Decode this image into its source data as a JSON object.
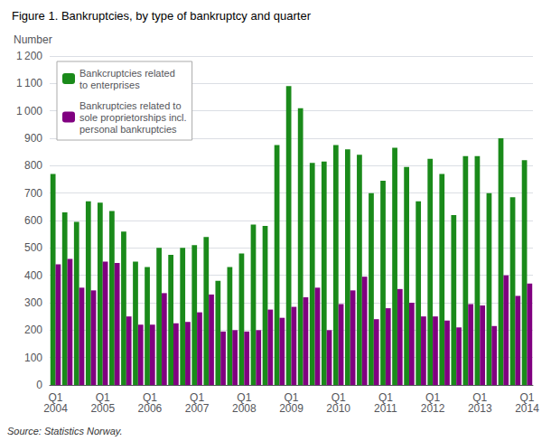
{
  "chart_data": {
    "type": "bar",
    "title": "Figure 1. Bankruptcies, by type of bankruptcy and quarter",
    "ylabel": "Number",
    "source": "Source: Statistics Norway.",
    "categories": [
      "Q1\n2004",
      null,
      null,
      null,
      "Q1\n2005",
      null,
      null,
      null,
      "Q1\n2006",
      null,
      null,
      null,
      "Q1\n2007",
      null,
      null,
      null,
      "Q1\n2008",
      null,
      null,
      null,
      "Q1\n2009",
      null,
      null,
      null,
      "Q1\n2010",
      null,
      null,
      null,
      "Q1\n2011",
      null,
      null,
      null,
      "Q1\n2012",
      null,
      null,
      null,
      "Q1\n2013",
      null,
      null,
      null,
      "Q1\n2014"
    ],
    "series": [
      {
        "name": "Bankcruptcies related\nto enterprises",
        "color": "#1a8a1a",
        "values": [
          770,
          630,
          595,
          670,
          665,
          635,
          560,
          450,
          430,
          500,
          475,
          500,
          510,
          540,
          380,
          430,
          480,
          585,
          580,
          875,
          1090,
          1010,
          810,
          815,
          875,
          860,
          840,
          700,
          745,
          865,
          795,
          670,
          825,
          770,
          620,
          835,
          835,
          700,
          900,
          685,
          820
        ]
      },
      {
        "name": "Bankruptcies related to\nsole proprietorships incl.\npersonal bankruptcies",
        "color": "#800080",
        "values": [
          440,
          460,
          355,
          345,
          450,
          445,
          250,
          220,
          220,
          335,
          225,
          230,
          265,
          330,
          195,
          200,
          195,
          200,
          275,
          245,
          285,
          320,
          355,
          200,
          295,
          345,
          395,
          240,
          280,
          350,
          300,
          250,
          250,
          235,
          210,
          295,
          290,
          215,
          400,
          325,
          370
        ]
      }
    ],
    "ylim": [
      0,
      1200
    ],
    "yticks": [
      0,
      100,
      200,
      300,
      400,
      500,
      600,
      700,
      800,
      900,
      {
        "value": 1000,
        "label": "1 000"
      },
      {
        "value": 1100,
        "label": "1 100"
      },
      {
        "value": 1200,
        "label": "1 200"
      }
    ],
    "grid": true,
    "legend": "upper left"
  }
}
